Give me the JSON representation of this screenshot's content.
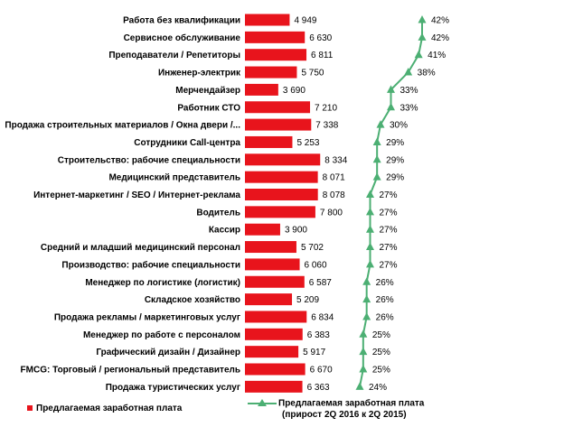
{
  "chart_data": {
    "type": "bar",
    "categories": [
      "Работа без квалификации",
      "Сервисное обслуживание",
      "Преподаватели / Репетиторы",
      "Инженер-электрик",
      "Мерчендайзер",
      "Работник СТО",
      "Продажа строительных материалов / Окна двери /...",
      "Сотрудники Call-центра",
      "Строительство: рабочие специальности",
      "Медицинский представитель",
      "Интернет-маркетинг / SEO / Интернет-реклама",
      "Водитель",
      "Кассир",
      "Средний и младший медицинский персонал",
      "Производство: рабочие специальности",
      "Менеджер по логистике (логистик)",
      "Складское хозяйство",
      "Продажа рекламы / маркетинговых услуг",
      "Менеджер по работе с персоналом",
      "Графический дизайн / Дизайнер",
      "FMCG: Торговый / региональный представитель",
      "Продажа туристических услуг"
    ],
    "series": [
      {
        "name": "Предлагаемая заработная плата",
        "type": "bar",
        "color": "#e8141c",
        "values": [
          4949,
          6630,
          6811,
          5750,
          3690,
          7210,
          7338,
          5253,
          8334,
          8071,
          8078,
          7800,
          3900,
          5702,
          6060,
          6587,
          5209,
          6834,
          6383,
          5917,
          6670,
          6363
        ],
        "labels": [
          "4 949",
          "6 630",
          "6 811",
          "5 750",
          "3 690",
          "7 210",
          "7 338",
          "5 253",
          "8 334",
          "8 071",
          "8 078",
          "7 800",
          "3 900",
          "5 702",
          "6 060",
          "6 587",
          "5 209",
          "6 834",
          "6 383",
          "5 917",
          "6 670",
          "6 363"
        ]
      },
      {
        "name": "Предлагаемая заработная плата (прирост 2Q 2016 к 2Q 2015)",
        "type": "line",
        "color": "#4caf73",
        "values": [
          42,
          42,
          41,
          38,
          33,
          33,
          30,
          29,
          29,
          29,
          27,
          27,
          27,
          27,
          27,
          26,
          26,
          26,
          25,
          25,
          25,
          24
        ],
        "labels": [
          "42%",
          "42%",
          "41%",
          "38%",
          "33%",
          "33%",
          "30%",
          "29%",
          "29%",
          "29%",
          "27%",
          "27%",
          "27%",
          "27%",
          "27%",
          "26%",
          "26%",
          "26%",
          "25%",
          "25%",
          "25%",
          "24%"
        ]
      }
    ],
    "legend": {
      "position": "bottom",
      "bar_label": "Предлагаемая заработная плата",
      "line_label_1": "Предлагаемая заработная плата",
      "line_label_2": "(прирост 2Q 2016 к 2Q 2015)"
    },
    "grid": false
  }
}
